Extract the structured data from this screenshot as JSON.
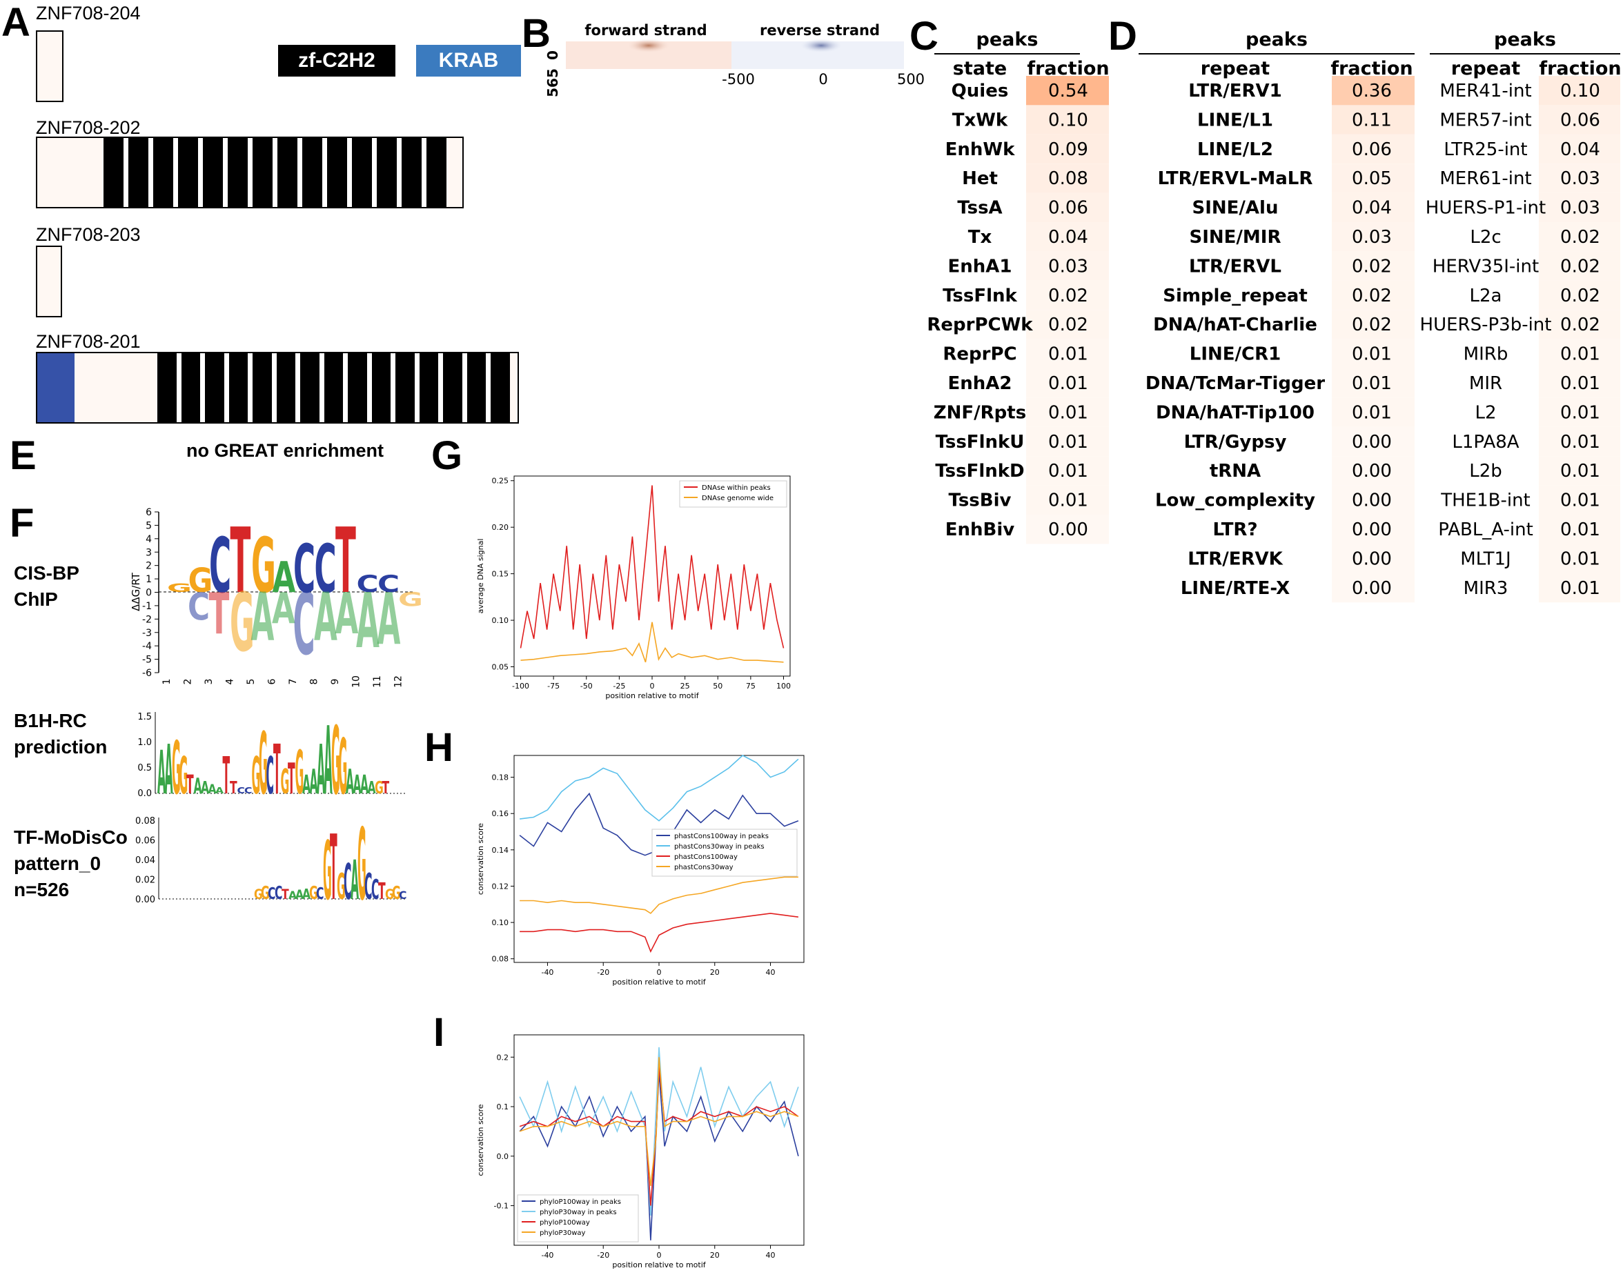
{
  "panels": {
    "A": "A",
    "B": "B",
    "C": "C",
    "D": "D",
    "E": "E",
    "F": "F",
    "G": "G",
    "H": "H",
    "I": "I"
  },
  "isoforms": [
    {
      "name": "ZNF708-204",
      "segments": [
        [
          "plain",
          1
        ]
      ]
    },
    {
      "name": "ZNF708-202",
      "segments": [
        [
          "plain",
          1
        ],
        [
          "zf",
          14
        ]
      ]
    },
    {
      "name": "ZNF708-203",
      "segments": [
        [
          "plain",
          1
        ]
      ]
    },
    {
      "name": "ZNF708-201",
      "segments": [
        [
          "krab",
          1
        ],
        [
          "plain",
          1
        ],
        [
          "zf",
          15
        ]
      ]
    }
  ],
  "domain_legend": {
    "zf": "zf-C2H2",
    "krab": "KRAB",
    "zf_color": "#000000",
    "krab_color": "#3b7bbf"
  },
  "panel_b": {
    "forward": "forward strand",
    "reverse": "reverse strand",
    "y_top": "0",
    "y_bottom": "565",
    "x_ticks": [
      "-500",
      "0",
      "500"
    ]
  },
  "panel_c": {
    "header": "peaks",
    "col1": "state",
    "col2": "fraction",
    "rows": [
      [
        "Quies",
        "0.54"
      ],
      [
        "TxWk",
        "0.10"
      ],
      [
        "EnhWk",
        "0.09"
      ],
      [
        "Het",
        "0.08"
      ],
      [
        "TssA",
        "0.06"
      ],
      [
        "Tx",
        "0.04"
      ],
      [
        "EnhA1",
        "0.03"
      ],
      [
        "TssFlnk",
        "0.02"
      ],
      [
        "ReprPCWk",
        "0.02"
      ],
      [
        "ReprPC",
        "0.01"
      ],
      [
        "EnhA2",
        "0.01"
      ],
      [
        "ZNF/Rpts",
        "0.01"
      ],
      [
        "TssFlnkU",
        "0.01"
      ],
      [
        "TssFlnkD",
        "0.01"
      ],
      [
        "TssBiv",
        "0.01"
      ],
      [
        "EnhBiv",
        "0.00"
      ]
    ]
  },
  "panel_d1": {
    "header": "peaks",
    "col1": "repeat",
    "col2": "fraction",
    "rows": [
      [
        "LTR/ERV1",
        "0.36"
      ],
      [
        "LINE/L1",
        "0.11"
      ],
      [
        "LINE/L2",
        "0.06"
      ],
      [
        "LTR/ERVL-MaLR",
        "0.05"
      ],
      [
        "SINE/Alu",
        "0.04"
      ],
      [
        "SINE/MIR",
        "0.03"
      ],
      [
        "LTR/ERVL",
        "0.02"
      ],
      [
        "Simple_repeat",
        "0.02"
      ],
      [
        "DNA/hAT-Charlie",
        "0.02"
      ],
      [
        "LINE/CR1",
        "0.01"
      ],
      [
        "DNA/TcMar-Tigger",
        "0.01"
      ],
      [
        "DNA/hAT-Tip100",
        "0.01"
      ],
      [
        "LTR/Gypsy",
        "0.00"
      ],
      [
        "tRNA",
        "0.00"
      ],
      [
        "Low_complexity",
        "0.00"
      ],
      [
        "LTR?",
        "0.00"
      ],
      [
        "LTR/ERVK",
        "0.00"
      ],
      [
        "LINE/RTE-X",
        "0.00"
      ]
    ]
  },
  "panel_d2": {
    "header": "peaks",
    "col1": "repeat",
    "col2": "fraction",
    "rows": [
      [
        "MER41-int",
        "0.10"
      ],
      [
        "MER57-int",
        "0.06"
      ],
      [
        "LTR25-int",
        "0.04"
      ],
      [
        "MER61-int",
        "0.03"
      ],
      [
        "HUERS-P1-int",
        "0.03"
      ],
      [
        "L2c",
        "0.02"
      ],
      [
        "HERV35I-int",
        "0.02"
      ],
      [
        "L2a",
        "0.02"
      ],
      [
        "HUERS-P3b-int",
        "0.02"
      ],
      [
        "MIRb",
        "0.01"
      ],
      [
        "MIR",
        "0.01"
      ],
      [
        "L2",
        "0.01"
      ],
      [
        "L1PA8A",
        "0.01"
      ],
      [
        "L2b",
        "0.01"
      ],
      [
        "THE1B-int",
        "0.01"
      ],
      [
        "PABL_A-int",
        "0.01"
      ],
      [
        "MLT1J",
        "0.01"
      ],
      [
        "MIR3",
        "0.01"
      ]
    ]
  },
  "panel_e": {
    "text": "no GREAT enrichment"
  },
  "panel_f": {
    "labels": [
      [
        "CIS-BP",
        "ChIP"
      ],
      [
        "B1H-RC",
        "prediction"
      ],
      [
        "TF-MoDisCo",
        "pattern_0",
        "n=526"
      ]
    ],
    "logo1": {
      "ylabel": "ΔΔG/RT",
      "yticks": [
        "6",
        "5",
        "4",
        "3",
        "2",
        "1",
        "0",
        "-1",
        "-2",
        "-3",
        "-4",
        "-5",
        "-6"
      ],
      "xticks": [
        "1",
        "2",
        "3",
        "4",
        "5",
        "6",
        "7",
        "8",
        "9",
        "10",
        "11",
        "12"
      ],
      "top": [
        "GG",
        "G",
        "C",
        "T",
        "G",
        "A",
        "C",
        "C",
        "T",
        "C"
      ],
      "bottom": [
        "C",
        "T",
        "G",
        "A",
        "A",
        "C",
        "A",
        "A",
        "A",
        "A"
      ]
    },
    "logo2": {
      "yticks": [
        "1.5",
        "1.0",
        "0.5",
        "0.0"
      ]
    },
    "logo3": {
      "yticks": [
        "0.08",
        "0.06",
        "0.04",
        "0.02",
        "0.00"
      ]
    }
  },
  "chart_data": [
    {
      "type": "line",
      "panel": "G",
      "xlabel": "position relative to motif",
      "ylabel": "average DNA signal",
      "xlim": [
        -105,
        105
      ],
      "ylim": [
        0.04,
        0.255
      ],
      "xticks": [
        "-100",
        "-75",
        "-50",
        "-25",
        "0",
        "25",
        "50",
        "75",
        "100"
      ],
      "yticks": [
        "0.05",
        "0.10",
        "0.15",
        "0.20",
        "0.25"
      ],
      "legend_position": "top-right",
      "series": [
        {
          "name": "DNAse within peaks",
          "color": "#e01e1e",
          "x": [
            -100,
            -95,
            -90,
            -85,
            -80,
            -75,
            -70,
            -65,
            -60,
            -55,
            -50,
            -45,
            -40,
            -35,
            -30,
            -25,
            -20,
            -15,
            -10,
            -5,
            0,
            5,
            10,
            15,
            20,
            25,
            30,
            35,
            40,
            45,
            50,
            55,
            60,
            65,
            70,
            75,
            80,
            85,
            90,
            95,
            100
          ],
          "values": [
            0.07,
            0.11,
            0.08,
            0.14,
            0.09,
            0.15,
            0.11,
            0.18,
            0.09,
            0.16,
            0.08,
            0.15,
            0.1,
            0.17,
            0.09,
            0.16,
            0.12,
            0.19,
            0.1,
            0.17,
            0.245,
            0.12,
            0.18,
            0.09,
            0.15,
            0.1,
            0.17,
            0.11,
            0.15,
            0.09,
            0.16,
            0.1,
            0.15,
            0.09,
            0.16,
            0.11,
            0.15,
            0.09,
            0.14,
            0.1,
            0.07
          ]
        },
        {
          "name": "DNAse genome wide",
          "color": "#f5a623",
          "x": [
            -100,
            -90,
            -80,
            -70,
            -60,
            -50,
            -40,
            -30,
            -20,
            -15,
            -10,
            -5,
            0,
            5,
            10,
            15,
            20,
            30,
            40,
            50,
            60,
            70,
            80,
            90,
            100
          ],
          "values": [
            0.057,
            0.058,
            0.06,
            0.062,
            0.063,
            0.064,
            0.066,
            0.067,
            0.07,
            0.062,
            0.075,
            0.055,
            0.098,
            0.058,
            0.07,
            0.06,
            0.064,
            0.06,
            0.062,
            0.058,
            0.06,
            0.057,
            0.057,
            0.056,
            0.055
          ]
        }
      ]
    },
    {
      "type": "line",
      "panel": "H",
      "xlabel": "position relative to motif",
      "ylabel": "conservation score",
      "xlim": [
        -52,
        52
      ],
      "ylim": [
        0.078,
        0.192
      ],
      "xticks": [
        "-40",
        "-20",
        "0",
        "20",
        "40"
      ],
      "yticks": [
        "0.08",
        "0.10",
        "0.12",
        "0.14",
        "0.16",
        "0.18"
      ],
      "legend_position": "center-right",
      "series": [
        {
          "name": "phastCons100way in peaks",
          "color": "#2b3f9e",
          "x": [
            -50,
            -45,
            -40,
            -35,
            -30,
            -25,
            -20,
            -15,
            -10,
            -5,
            0,
            5,
            10,
            15,
            20,
            25,
            30,
            35,
            40,
            45,
            50
          ],
          "values": [
            0.148,
            0.142,
            0.155,
            0.15,
            0.162,
            0.171,
            0.152,
            0.148,
            0.14,
            0.137,
            0.14,
            0.15,
            0.162,
            0.155,
            0.162,
            0.157,
            0.17,
            0.16,
            0.16,
            0.153,
            0.156
          ]
        },
        {
          "name": "phastCons30way in peaks",
          "color": "#5bc0eb",
          "x": [
            -50,
            -45,
            -40,
            -35,
            -30,
            -25,
            -20,
            -15,
            -10,
            -5,
            0,
            5,
            10,
            15,
            20,
            25,
            30,
            35,
            40,
            45,
            50
          ],
          "values": [
            0.157,
            0.158,
            0.162,
            0.172,
            0.178,
            0.18,
            0.185,
            0.182,
            0.172,
            0.162,
            0.156,
            0.163,
            0.172,
            0.175,
            0.18,
            0.185,
            0.192,
            0.188,
            0.18,
            0.183,
            0.19
          ]
        },
        {
          "name": "phastCons100way",
          "color": "#e01e1e",
          "x": [
            -50,
            -45,
            -40,
            -35,
            -30,
            -25,
            -20,
            -15,
            -10,
            -5,
            -3,
            0,
            5,
            10,
            15,
            20,
            25,
            30,
            35,
            40,
            45,
            50
          ],
          "values": [
            0.095,
            0.095,
            0.096,
            0.096,
            0.095,
            0.096,
            0.096,
            0.095,
            0.095,
            0.092,
            0.084,
            0.093,
            0.097,
            0.099,
            0.1,
            0.101,
            0.102,
            0.103,
            0.104,
            0.105,
            0.104,
            0.103
          ]
        },
        {
          "name": "phastCons30way",
          "color": "#f5a623",
          "x": [
            -50,
            -45,
            -40,
            -35,
            -30,
            -25,
            -20,
            -15,
            -10,
            -5,
            -3,
            0,
            5,
            10,
            15,
            20,
            25,
            30,
            35,
            40,
            45,
            50
          ],
          "values": [
            0.112,
            0.112,
            0.111,
            0.112,
            0.111,
            0.111,
            0.11,
            0.109,
            0.108,
            0.107,
            0.105,
            0.11,
            0.113,
            0.115,
            0.116,
            0.118,
            0.12,
            0.122,
            0.123,
            0.124,
            0.125,
            0.125
          ]
        }
      ]
    },
    {
      "type": "line",
      "panel": "I",
      "xlabel": "position relative to motif",
      "ylabel": "conservation score",
      "xlim": [
        -52,
        52
      ],
      "ylim": [
        -0.18,
        0.245
      ],
      "xticks": [
        "-40",
        "-20",
        "0",
        "20",
        "40"
      ],
      "yticks": [
        "-0.1",
        "0.0",
        "0.1",
        "0.2"
      ],
      "legend_position": "bottom-left",
      "series": [
        {
          "name": "phyloP100way in peaks",
          "color": "#2b3f9e",
          "x": [
            -50,
            -45,
            -40,
            -35,
            -30,
            -25,
            -20,
            -15,
            -10,
            -5,
            -3,
            -1,
            0,
            2,
            5,
            10,
            15,
            20,
            25,
            30,
            35,
            40,
            45,
            50
          ],
          "values": [
            0.05,
            0.08,
            0.02,
            0.1,
            0.06,
            0.12,
            0.04,
            0.1,
            0.05,
            0.08,
            -0.17,
            0.05,
            0.17,
            0.02,
            0.08,
            0.05,
            0.12,
            0.03,
            0.09,
            0.05,
            0.1,
            0.07,
            0.11,
            0.0
          ]
        },
        {
          "name": "phyloP30way in peaks",
          "color": "#7fcdee",
          "x": [
            -50,
            -45,
            -40,
            -35,
            -30,
            -25,
            -20,
            -15,
            -10,
            -5,
            -3,
            -1,
            0,
            2,
            5,
            10,
            15,
            20,
            25,
            30,
            35,
            40,
            45,
            50
          ],
          "values": [
            0.12,
            0.06,
            0.15,
            0.05,
            0.14,
            0.06,
            0.12,
            0.05,
            0.13,
            0.06,
            -0.12,
            0.1,
            0.22,
            0.05,
            0.15,
            0.08,
            0.18,
            0.06,
            0.14,
            0.08,
            0.12,
            0.15,
            0.06,
            0.14
          ]
        },
        {
          "name": "phyloP100way",
          "color": "#e01e1e",
          "x": [
            -50,
            -45,
            -40,
            -35,
            -30,
            -25,
            -20,
            -15,
            -10,
            -5,
            -3,
            -1,
            0,
            2,
            5,
            10,
            15,
            20,
            25,
            30,
            35,
            40,
            45,
            50
          ],
          "values": [
            0.06,
            0.07,
            0.06,
            0.08,
            0.07,
            0.08,
            0.06,
            0.08,
            0.07,
            0.07,
            -0.1,
            0.05,
            0.18,
            0.07,
            0.08,
            0.07,
            0.09,
            0.08,
            0.09,
            0.08,
            0.1,
            0.09,
            0.1,
            0.08
          ]
        },
        {
          "name": "phyloP30way",
          "color": "#f5a623",
          "x": [
            -50,
            -45,
            -40,
            -35,
            -30,
            -25,
            -20,
            -15,
            -10,
            -5,
            -3,
            -1,
            0,
            2,
            5,
            10,
            15,
            20,
            25,
            30,
            35,
            40,
            45,
            50
          ],
          "values": [
            0.05,
            0.06,
            0.06,
            0.07,
            0.06,
            0.07,
            0.06,
            0.07,
            0.06,
            0.06,
            -0.06,
            0.04,
            0.2,
            0.06,
            0.07,
            0.07,
            0.08,
            0.07,
            0.08,
            0.08,
            0.09,
            0.08,
            0.09,
            0.08
          ]
        }
      ]
    }
  ]
}
